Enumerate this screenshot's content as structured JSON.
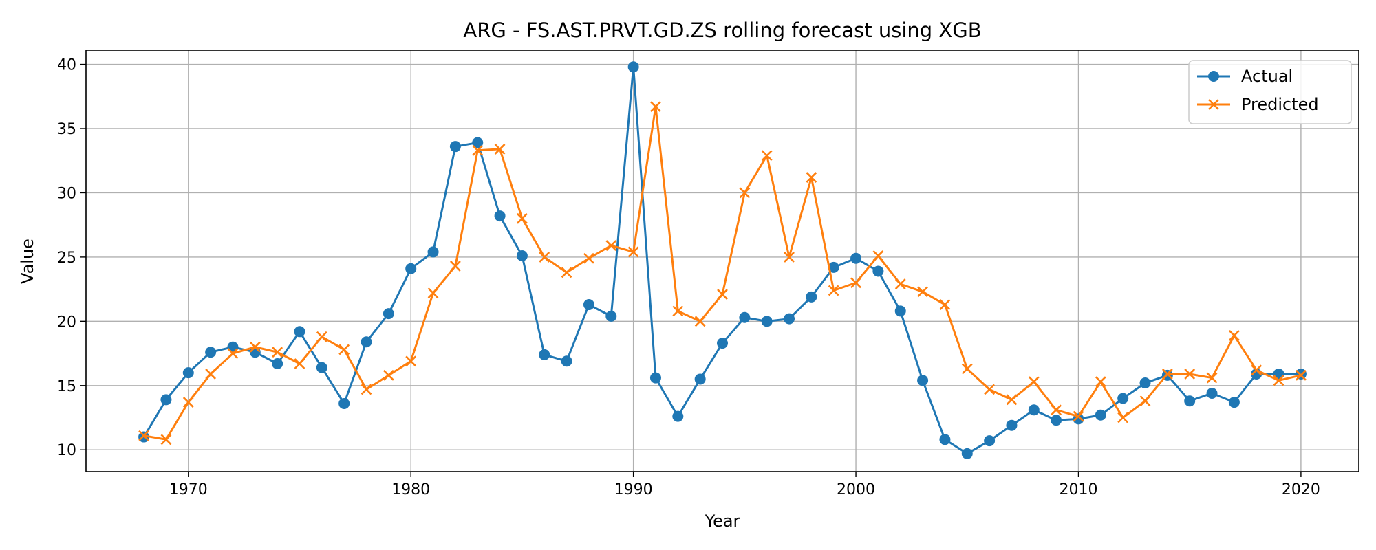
{
  "chart_data": {
    "type": "line",
    "title": "ARG - FS.AST.PRVT.GD.ZS rolling forecast using XGB",
    "xlabel": "Year",
    "ylabel": "Value",
    "xlim": [
      1965.4,
      2022.6
    ],
    "ylim": [
      8.3,
      41.1
    ],
    "xticks": [
      1970,
      1980,
      1990,
      2000,
      2010,
      2020
    ],
    "yticks": [
      10,
      15,
      20,
      25,
      30,
      35,
      40
    ],
    "grid": true,
    "legend_position": "top-right",
    "x": [
      1968,
      1969,
      1970,
      1971,
      1972,
      1973,
      1974,
      1975,
      1976,
      1977,
      1978,
      1979,
      1980,
      1981,
      1982,
      1983,
      1984,
      1985,
      1986,
      1987,
      1988,
      1989,
      1990,
      1991,
      1992,
      1993,
      1994,
      1995,
      1996,
      1997,
      1998,
      1999,
      2000,
      2001,
      2002,
      2003,
      2004,
      2005,
      2006,
      2007,
      2008,
      2009,
      2010,
      2011,
      2012,
      2013,
      2014,
      2015,
      2016,
      2017,
      2018,
      2019,
      2020
    ],
    "series": [
      {
        "name": "Actual",
        "color": "#1f77b4",
        "marker": "circle",
        "values": [
          11.0,
          13.9,
          16.0,
          17.6,
          18.0,
          17.6,
          16.7,
          19.2,
          16.4,
          13.6,
          18.4,
          20.6,
          24.1,
          25.4,
          33.6,
          33.9,
          28.2,
          25.1,
          17.4,
          16.9,
          21.3,
          20.4,
          39.8,
          15.6,
          12.6,
          15.5,
          18.3,
          20.3,
          20.0,
          20.2,
          21.9,
          24.2,
          24.9,
          23.9,
          20.8,
          15.4,
          10.8,
          9.7,
          10.7,
          11.9,
          13.1,
          12.3,
          12.4,
          12.7,
          14.0,
          15.2,
          15.8,
          13.8,
          14.4,
          13.7,
          15.9,
          15.9,
          15.9
        ]
      },
      {
        "name": "Predicted",
        "color": "#ff7f0e",
        "marker": "x",
        "values": [
          11.1,
          10.8,
          13.7,
          15.9,
          17.5,
          18.0,
          17.6,
          16.7,
          18.8,
          17.8,
          14.7,
          15.8,
          16.9,
          22.2,
          24.3,
          33.3,
          33.4,
          28.0,
          25.0,
          23.8,
          24.9,
          25.9,
          25.4,
          36.7,
          20.8,
          20.0,
          22.1,
          30.0,
          32.9,
          25.0,
          31.2,
          22.4,
          23.0,
          25.1,
          22.9,
          22.3,
          21.3,
          16.3,
          14.7,
          13.9,
          15.3,
          13.1,
          12.6,
          15.3,
          12.5,
          13.8,
          15.9,
          15.9,
          15.6,
          18.9,
          16.2,
          15.4,
          15.8
        ]
      }
    ]
  }
}
